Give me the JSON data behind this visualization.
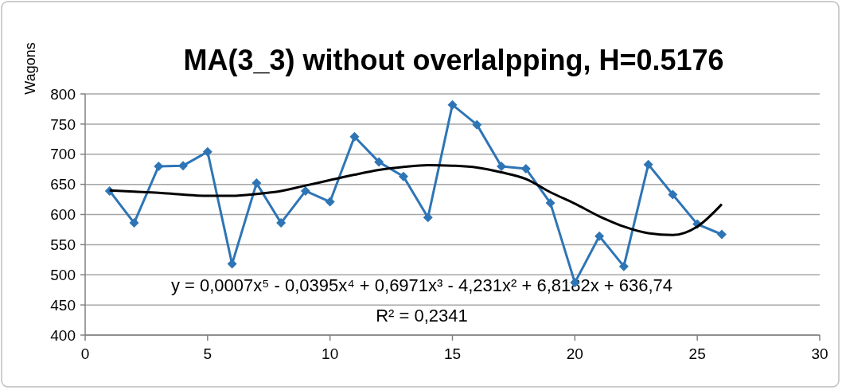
{
  "chart_data": {
    "type": "line",
    "title": "MA(3_3) without overlalpping, H=0.5176",
    "ylabel": "Wagons",
    "x": [
      1,
      2,
      3,
      4,
      5,
      6,
      7,
      8,
      9,
      10,
      11,
      12,
      13,
      14,
      15,
      16,
      17,
      18,
      19,
      20,
      21,
      22,
      23,
      24,
      25,
      26
    ],
    "series": [
      {
        "color": "#2e75b6",
        "marker": "diamond",
        "values": [
          639,
          586,
          680,
          681,
          704,
          518,
          652,
          586,
          639,
          621,
          729,
          687,
          663,
          595,
          782,
          749,
          680,
          676,
          619,
          487,
          564,
          514,
          683,
          633,
          584,
          567
        ]
      },
      {
        "color": "#000000",
        "marker": "none",
        "values": [
          640,
          638,
          636,
          633,
          631,
          631,
          634,
          639,
          648,
          657,
          666,
          674,
          679,
          682,
          681,
          678,
          670,
          659,
          637,
          618,
          597,
          580,
          569,
          566,
          580,
          617
        ]
      }
    ],
    "xlim": [
      0,
      30
    ],
    "xticks": [
      0,
      5,
      10,
      15,
      20,
      25,
      30
    ],
    "ylim": [
      400,
      800
    ],
    "yticks": [
      400,
      450,
      500,
      550,
      600,
      650,
      700,
      750,
      800
    ],
    "grid": "y",
    "annotations": [
      "y = 0,0007x⁵ - 0,0395x⁴ + 0,6971x³ - 4,231x² + 6,8182x + 636,74",
      "R² = 0,2341"
    ]
  }
}
